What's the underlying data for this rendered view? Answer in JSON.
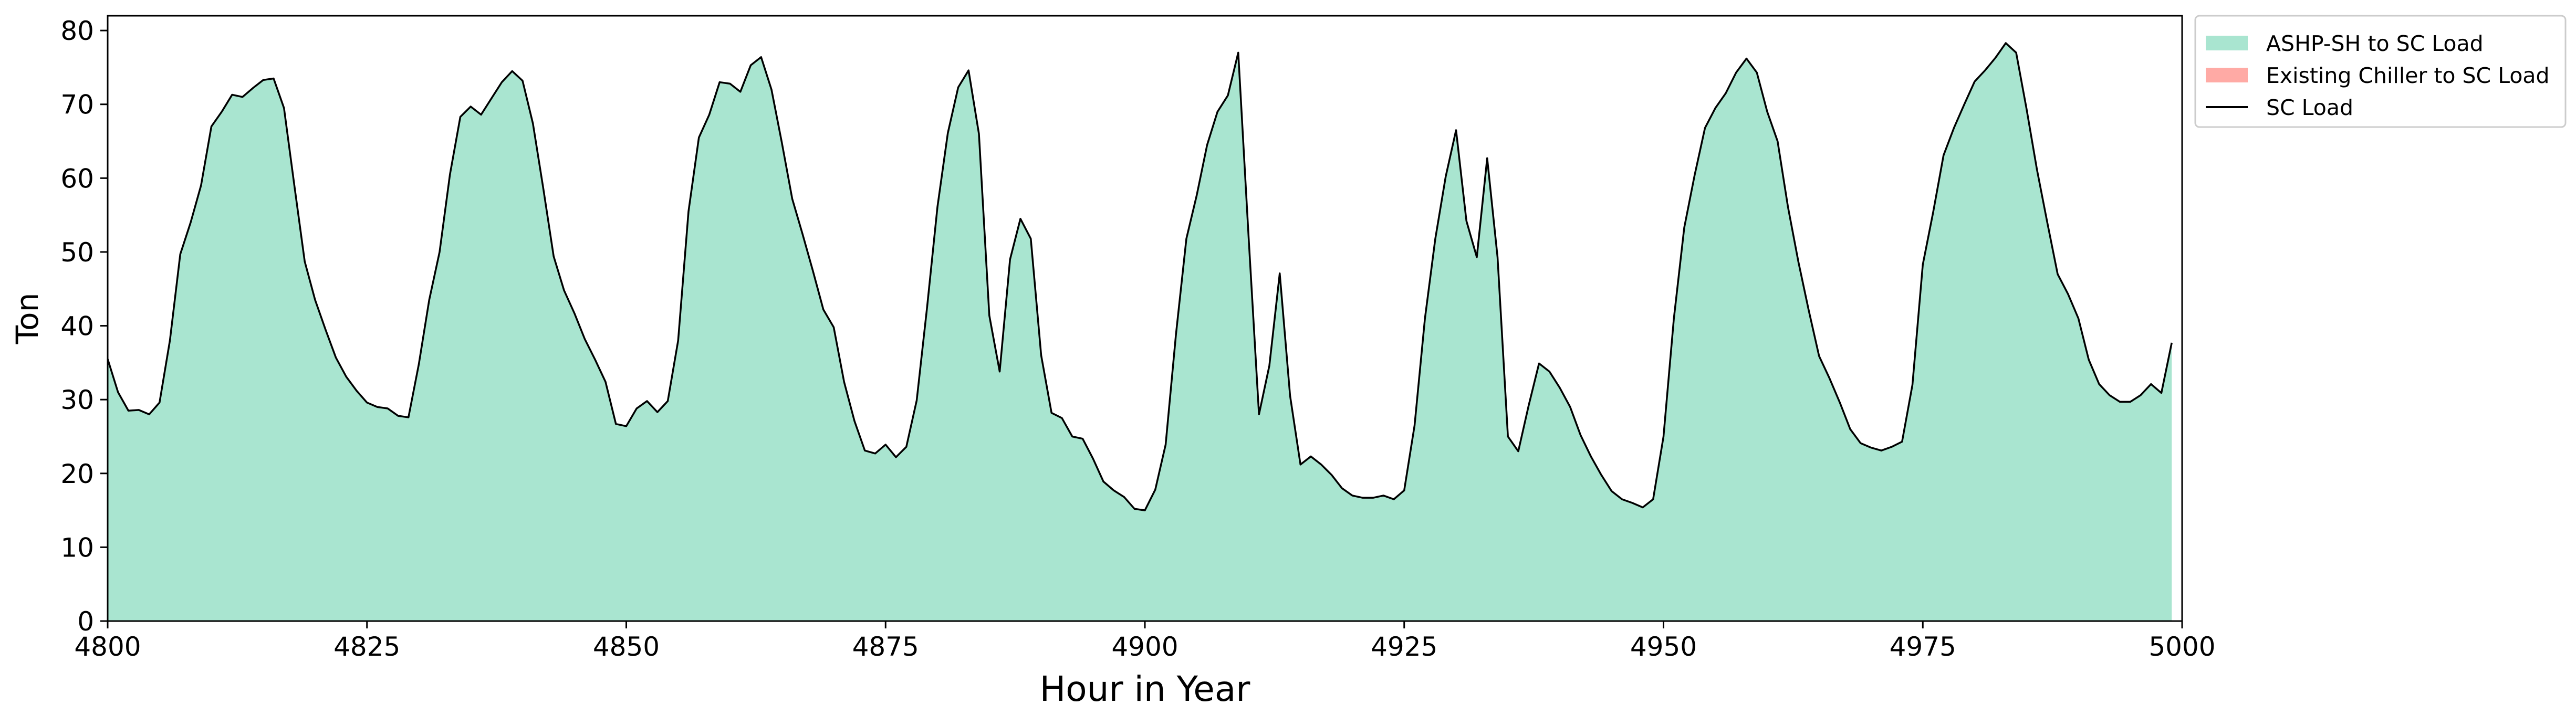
{
  "chart_data": {
    "type": "area",
    "title": "",
    "xlabel": "Hour in Year",
    "ylabel": "Ton",
    "xlim": [
      4800,
      5000
    ],
    "ylim": [
      0,
      82
    ],
    "xticks": [
      4800,
      4825,
      4850,
      4875,
      4900,
      4925,
      4950,
      4975,
      5000
    ],
    "yticks": [
      0,
      10,
      20,
      30,
      40,
      50,
      60,
      70,
      80
    ],
    "grid": false,
    "legend_position": "outside-top-right",
    "colors": {
      "ashp": "#a9e5d0",
      "chiller": "#ffaaa5",
      "load_line": "#000000"
    },
    "legend": [
      {
        "label": "ASHP-SH to SC Load",
        "kind": "patch",
        "color": "#a9e5d0"
      },
      {
        "label": "Existing Chiller to SC Load",
        "kind": "patch",
        "color": "#ffaaa5"
      },
      {
        "label": "SC Load",
        "kind": "line",
        "color": "#000000"
      }
    ],
    "x_start": 4800,
    "x_step": 1,
    "series": [
      {
        "name": "ASHP-SH to SC Load",
        "values": [
          35.5,
          31,
          28.5,
          28.6,
          28,
          29.6,
          38,
          49.7,
          54,
          59,
          67,
          69,
          71.3,
          71,
          72.2,
          73.3,
          73.5,
          69.5,
          59,
          48.7,
          43.5,
          39.5,
          35.7,
          33.1,
          31.2,
          29.6,
          29,
          28.8,
          27.8,
          27.6,
          34.8,
          43.5,
          50,
          60.5,
          68.3,
          69.7,
          68.6,
          70.8,
          73,
          74.5,
          73.2,
          67.4,
          58.6,
          49.4,
          44.8,
          41.7,
          38.2,
          35.4,
          32.4,
          26.7,
          26.4,
          28.8,
          29.8,
          28.3,
          29.8,
          38,
          55.5,
          65.5,
          68.6,
          73,
          72.8,
          71.7,
          75.3,
          76.4,
          72,
          64.8,
          57.2,
          52.4,
          47.4,
          42.2,
          39.8,
          32.4,
          27.1,
          23.1,
          22.7,
          23.9,
          22.2,
          23.6,
          29.9,
          42.5,
          56.1,
          66.1,
          72.3,
          74.6,
          66,
          41.4,
          33.8,
          49,
          54.5,
          51.8,
          36,
          28.2,
          27.5,
          25,
          24.7,
          22,
          18.9,
          17.7,
          16.8,
          15.2,
          15,
          17.8,
          23.9,
          38.9,
          51.8,
          57.7,
          64.5,
          69,
          71.2,
          77,
          52,
          28,
          34.6,
          47.1,
          30.5,
          21.2,
          22.3,
          21.2,
          19.8,
          18,
          17,
          16.7,
          16.7,
          17,
          16.5,
          17.7,
          26.5,
          41,
          51.8,
          60.2,
          66.5,
          54.2,
          49.3,
          62.7,
          49.3,
          25,
          23,
          29.2,
          34.9,
          33.8,
          31.6,
          29,
          25.2,
          22.3,
          19.8,
          17.6,
          16.5,
          16,
          15.4,
          16.5,
          25,
          41,
          53.3,
          60.4,
          66.8,
          69.5,
          71.5,
          74.3,
          76.2,
          74.3,
          69,
          65,
          56.1,
          48.7,
          42.1,
          35.9,
          32.9,
          29.6,
          26,
          24.1,
          23.5,
          23.1,
          23.6,
          24.3,
          32,
          48.3,
          55.4,
          63.1,
          66.8,
          70,
          73.1,
          74.6,
          76.3,
          78.3,
          77,
          69.4,
          61.2,
          54,
          47,
          44.3,
          41,
          35.4,
          32.1,
          30.6,
          29.7,
          29.7,
          30.6,
          32.1,
          30.9,
          37.7
        ]
      },
      {
        "name": "Existing Chiller to SC Load",
        "values": [
          0,
          0,
          0,
          0,
          0,
          0,
          0,
          0,
          0,
          0,
          0,
          0,
          0,
          0,
          0,
          0,
          0,
          0,
          0,
          0,
          0,
          0,
          0,
          0,
          0,
          0,
          0,
          0,
          0,
          0,
          0,
          0,
          0,
          0,
          0,
          0,
          0,
          0,
          0,
          0,
          0,
          0,
          0,
          0,
          0,
          0,
          0,
          0,
          0,
          0,
          0,
          0,
          0,
          0,
          0,
          0,
          0,
          0,
          0,
          0,
          0,
          0,
          0,
          0,
          0,
          0,
          0,
          0,
          0,
          0,
          0,
          0,
          0,
          0,
          0,
          0,
          0,
          0,
          0,
          0,
          0,
          0,
          0,
          0,
          0,
          0,
          0,
          0,
          0,
          0,
          0,
          0,
          0,
          0,
          0,
          0,
          0,
          0,
          0,
          0,
          0,
          0,
          0,
          0,
          0,
          0,
          0,
          0,
          0,
          0,
          0,
          0,
          0,
          0,
          0,
          0,
          0,
          0,
          0,
          0,
          0,
          0,
          0,
          0,
          0,
          0,
          0,
          0,
          0,
          0,
          0,
          0,
          0,
          0,
          0,
          0,
          0,
          0,
          0,
          0,
          0,
          0,
          0,
          0,
          0,
          0,
          0,
          0,
          0,
          0,
          0,
          0,
          0,
          0,
          0,
          0,
          0,
          0,
          0,
          0,
          0,
          0,
          0,
          0,
          0,
          0,
          0,
          0,
          0,
          0,
          0,
          0,
          0,
          0,
          0,
          0,
          0,
          0,
          0,
          0,
          0,
          0,
          0,
          0,
          0,
          0,
          0,
          0,
          0,
          0,
          0,
          0,
          0,
          0,
          0,
          0,
          0,
          0,
          0,
          0
        ]
      }
    ]
  }
}
